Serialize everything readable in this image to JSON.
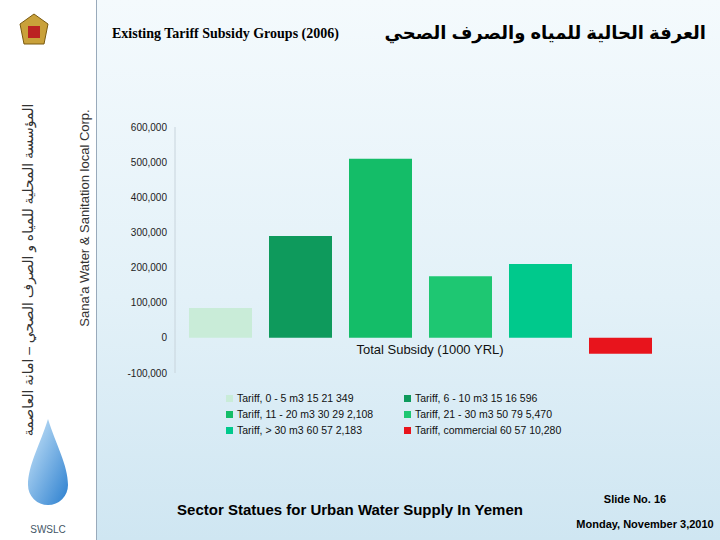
{
  "chart_data": {
    "type": "bar",
    "title": "Existing Tariff Subsidy Groups (2006)",
    "subtitle": "العرفة الحالية للمياه والصرف الصحي",
    "x_label": "Total Subsidy (1000 YRL)",
    "categories": [
      null
    ],
    "series": [
      {
        "name": "Tariff, 0 - 5 m3 15 21 349",
        "color": "#c9ecd8",
        "values": [
          85000
        ]
      },
      {
        "name": "Tariff, 6 - 10 m3 15 16 596",
        "color": "#0e9a5c",
        "values": [
          290000
        ]
      },
      {
        "name": "Tariff, 11 - 20 m3 30 29 2,108",
        "color": "#14bd68",
        "values": [
          510000
        ]
      },
      {
        "name": "Tariff, 21 - 30 m3 50 79 5,470",
        "color": "#1ec772",
        "values": [
          175000
        ]
      },
      {
        "name": "Tariff, > 30 m3 60 57 2,183",
        "color": "#00c98c",
        "values": [
          210000
        ]
      },
      {
        "name": "Tariff, commercial 60 57 10,280",
        "color": "#e8141c",
        "values": [
          -45000
        ]
      }
    ],
    "ylim": [
      -100000,
      600000
    ],
    "yticks": [
      {
        "value": -100000,
        "label": "-100,000"
      },
      0,
      {
        "value": 100000,
        "label": "100,000"
      },
      {
        "value": 200000,
        "label": "200,000"
      },
      {
        "value": 300000,
        "label": "300,000"
      },
      {
        "value": 400000,
        "label": "400,000"
      },
      {
        "value": 500000,
        "label": "500,000"
      },
      {
        "value": 600000,
        "label": "600,000"
      }
    ],
    "grid": false,
    "legend": "bottom",
    "tick_labels": "y"
  },
  "slide": {
    "side_arabic": "المؤسسة المحلية للمياه و الصرف الصحي – امانة العاصمة",
    "side_english": "Sana'a Water & Sanitation local Corp.",
    "logo_text": "SWSLC",
    "footer": "Sector Statues for Urban Water Supply In Yemen",
    "slide_no": "Slide No. 16",
    "date": "Monday, November 3,2010"
  }
}
